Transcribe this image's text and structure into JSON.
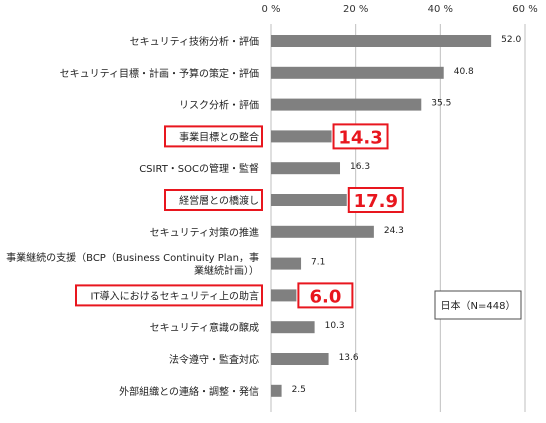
{
  "chart_data": {
    "type": "bar",
    "orientation": "horizontal",
    "title": "",
    "xlabel": "",
    "ylabel": "",
    "xlim": [
      0,
      60
    ],
    "xticks": [
      0,
      20,
      40,
      60
    ],
    "xtick_labels": [
      "0 %",
      "20 %",
      "40 %",
      "60 %"
    ],
    "grid": "vertical",
    "bar_color": "#808080",
    "highlight_color": "#e8161e",
    "legend_text": "日本（N=448）",
    "legend_position": "bottom-right",
    "categories": [
      "セキュリティ技術分析・評価",
      "セキュリティ目標・計画・予算の策定・評価",
      "リスク分析・評価",
      "事業目標との整合",
      "CSIRT・SOCの管理・監督",
      "経営層との橋渡し",
      "セキュリティ対策の推進",
      "事業継続の支援（BCP（Business Continuity Plan，事業継続計画））",
      "IT導入におけるセキュリティ上の助言",
      "セキュリティ意識の醸成",
      "法令遵守・監査対応",
      "外部組織との連絡・調整・発信"
    ],
    "category_lines": [
      [
        "セキュリティ技術分析・評価"
      ],
      [
        "セキュリティ目標・計画・予算の策定・評価"
      ],
      [
        "リスク分析・評価"
      ],
      [
        "事業目標との整合"
      ],
      [
        "CSIRT・SOCの管理・監督"
      ],
      [
        "経営層との橋渡し"
      ],
      [
        "セキュリティ対策の推進"
      ],
      [
        "事業継続の支援（BCP（Business Continuity Plan，事",
        "業継続計画））"
      ],
      [
        "IT導入におけるセキュリティ上の助言"
      ],
      [
        "セキュリティ意識の醸成"
      ],
      [
        "法令遵守・監査対応"
      ],
      [
        "外部組織との連絡・調整・発信"
      ]
    ],
    "values": [
      52.0,
      40.8,
      35.5,
      14.3,
      16.3,
      17.9,
      24.3,
      7.1,
      6.0,
      10.3,
      13.6,
      2.5
    ],
    "value_labels": [
      "52.0",
      "40.8",
      "35.5",
      "14.3",
      "16.3",
      "17.9",
      "24.3",
      "7.1",
      "6.0",
      "10.3",
      "13.6",
      "2.5"
    ],
    "highlighted": [
      false,
      false,
      false,
      true,
      false,
      true,
      false,
      false,
      true,
      false,
      false,
      false
    ]
  }
}
